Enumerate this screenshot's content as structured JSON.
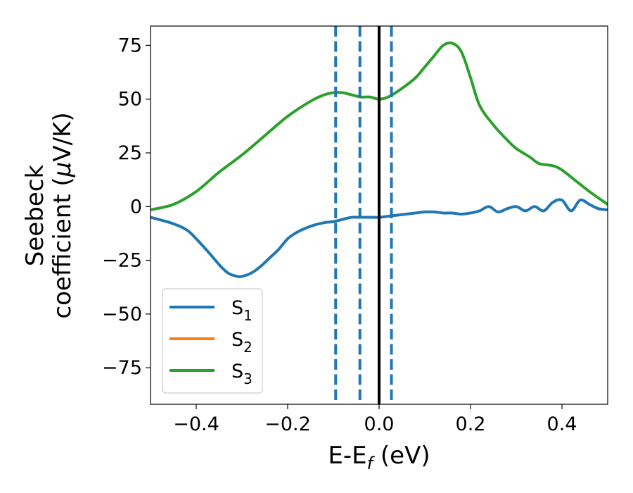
{
  "chart_data": {
    "type": "line",
    "xlabel": {
      "main": "E-E",
      "sub": "f",
      "suffix": " (eV)"
    },
    "ylabel": {
      "line1": "Seebeck",
      "line2_pre": "coefficient  (",
      "mu": "μ",
      "line2_post": "V/K)"
    },
    "xlim": [
      -0.5,
      0.5
    ],
    "ylim": [
      -92,
      84
    ],
    "xticks": [
      -0.4,
      -0.2,
      0.0,
      0.2,
      0.4
    ],
    "xtick_labels": [
      "−0.4",
      "−0.2",
      "0.0",
      "0.2",
      "0.4"
    ],
    "yticks": [
      75,
      50,
      25,
      0,
      -25,
      -50,
      -75
    ],
    "ytick_labels": [
      "75",
      "50",
      "25",
      "0",
      "−25",
      "−50",
      "−75"
    ],
    "grid": false,
    "legend": {
      "placement": "lower-left",
      "entries": [
        {
          "base": "S",
          "sub": "1",
          "color": "#1f77b4"
        },
        {
          "base": "S",
          "sub": "2",
          "color": "#ff7f0e"
        },
        {
          "base": "S",
          "sub": "3",
          "color": "#2ca02c"
        }
      ]
    },
    "vlines": [
      {
        "x": -0.095,
        "style": "dashed",
        "color": "#1f77b4"
      },
      {
        "x": -0.042,
        "style": "dashed",
        "color": "#1f77b4"
      },
      {
        "x": 0.0,
        "style": "solid",
        "color": "#000000"
      },
      {
        "x": 0.027,
        "style": "dashed",
        "color": "#1f77b4"
      }
    ],
    "series": [
      {
        "name": "S1",
        "color": "#1f77b4",
        "x": [
          -0.5,
          -0.45,
          -0.42,
          -0.4,
          -0.37,
          -0.35,
          -0.33,
          -0.31,
          -0.3,
          -0.28,
          -0.26,
          -0.24,
          -0.22,
          -0.2,
          -0.18,
          -0.16,
          -0.14,
          -0.12,
          -0.1,
          -0.08,
          -0.06,
          -0.04,
          -0.02,
          0.0,
          0.02,
          0.04,
          0.06,
          0.08,
          0.1,
          0.12,
          0.14,
          0.16,
          0.18,
          0.2,
          0.22,
          0.24,
          0.26,
          0.28,
          0.3,
          0.32,
          0.34,
          0.36,
          0.38,
          0.4,
          0.42,
          0.44,
          0.46,
          0.48,
          0.5
        ],
        "y": [
          -5,
          -8,
          -11,
          -15,
          -22,
          -27,
          -31,
          -32.5,
          -32.5,
          -31,
          -28,
          -24,
          -20,
          -15,
          -12,
          -10,
          -8.5,
          -7.5,
          -7,
          -6,
          -5,
          -5,
          -5,
          -5,
          -4.5,
          -4,
          -3.5,
          -3,
          -2.5,
          -2.5,
          -3,
          -3,
          -3.5,
          -3,
          -2,
          0,
          -2.5,
          -1,
          0,
          -2,
          0,
          -2,
          2,
          3,
          -2,
          3,
          1,
          -1,
          -1.5
        ]
      },
      {
        "name": "S2",
        "color": "#ff7f0e",
        "x": [],
        "y": []
      },
      {
        "name": "S3",
        "color": "#2ca02c",
        "x": [
          -0.5,
          -0.45,
          -0.4,
          -0.35,
          -0.3,
          -0.25,
          -0.2,
          -0.15,
          -0.12,
          -0.1,
          -0.08,
          -0.06,
          -0.04,
          -0.02,
          0.0,
          0.02,
          0.05,
          0.08,
          0.1,
          0.12,
          0.14,
          0.16,
          0.18,
          0.2,
          0.22,
          0.25,
          0.28,
          0.3,
          0.33,
          0.35,
          0.38,
          0.4,
          0.43,
          0.46,
          0.5
        ],
        "y": [
          -1.5,
          1,
          7,
          16,
          24,
          33,
          42,
          49,
          52,
          53,
          53,
          52,
          51,
          51,
          50,
          51,
          55,
          60,
          65,
          70,
          75,
          76,
          72,
          60,
          47,
          38,
          31,
          27,
          23,
          20,
          19,
          17,
          12,
          7,
          1
        ]
      }
    ]
  }
}
